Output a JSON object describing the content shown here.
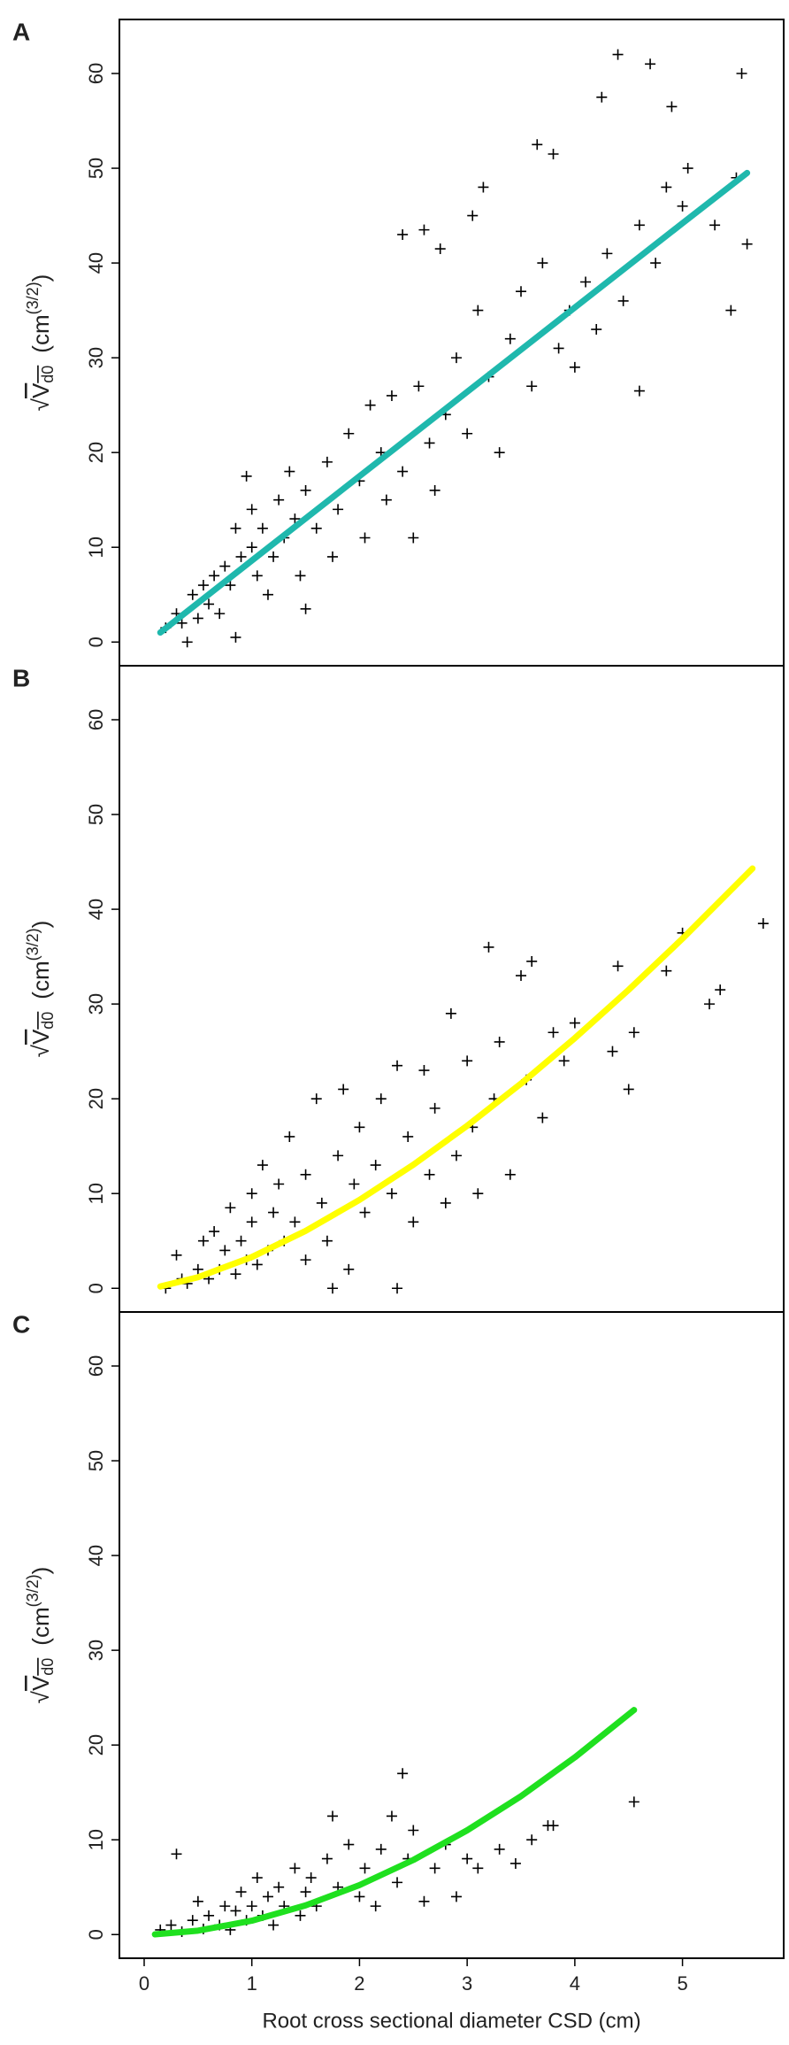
{
  "chart_data": [
    {
      "type": "scatter",
      "panel": "A",
      "ylabel": {
        "root": "√",
        "var": "V",
        "sub": "d0",
        "unit": "(cm",
        "sup": "(3/2)",
        "close": ")"
      },
      "xlim": [
        -0.23,
        5.94
      ],
      "ylim": [
        -2.5,
        65.7
      ],
      "yticks": [
        0,
        10,
        20,
        30,
        40,
        50,
        60
      ],
      "series": [
        {
          "kind": "points",
          "color": "#000000",
          "x": [
            0.2,
            0.3,
            0.35,
            0.4,
            0.45,
            0.5,
            0.55,
            0.6,
            0.65,
            0.7,
            0.75,
            0.8,
            0.85,
            0.85,
            0.9,
            0.95,
            1.0,
            1.0,
            1.05,
            1.1,
            1.15,
            1.2,
            1.25,
            1.3,
            1.35,
            1.4,
            1.45,
            1.5,
            1.5,
            1.6,
            1.7,
            1.75,
            1.8,
            1.9,
            2.0,
            2.05,
            2.1,
            2.2,
            2.25,
            2.3,
            2.4,
            2.4,
            2.5,
            2.55,
            2.6,
            2.65,
            2.7,
            2.75,
            2.8,
            2.9,
            3.0,
            3.05,
            3.1,
            3.15,
            3.2,
            3.3,
            3.4,
            3.5,
            3.6,
            3.65,
            3.7,
            3.8,
            3.85,
            3.95,
            4.0,
            4.1,
            4.2,
            4.25,
            4.3,
            4.4,
            4.45,
            4.6,
            4.6,
            4.7,
            4.75,
            4.85,
            4.9,
            5.0,
            5.05,
            5.3,
            5.45,
            5.5,
            5.55,
            5.6
          ],
          "values": [
            1.5,
            3,
            2,
            0,
            5,
            2.5,
            6,
            4,
            7,
            3,
            8,
            6,
            0.5,
            12,
            9,
            17.5,
            10,
            14,
            7,
            12,
            5,
            9,
            15,
            11,
            18,
            13,
            7,
            3.5,
            16,
            12,
            19,
            9,
            14,
            22,
            17,
            11,
            25,
            20,
            15,
            26,
            18,
            43,
            11,
            27,
            43.5,
            21,
            16,
            41.5,
            24,
            30,
            22,
            45,
            35,
            48,
            28,
            20,
            32,
            37,
            27,
            52.5,
            40,
            51.5,
            31,
            35,
            29,
            38,
            33,
            57.5,
            41,
            62,
            36,
            26.5,
            44,
            61,
            40,
            48,
            56.5,
            46,
            50,
            44,
            35,
            49,
            60,
            42
          ]
        },
        {
          "kind": "line",
          "color": "#1fb8ad",
          "x": [
            0.15,
            1,
            2,
            3,
            4,
            5,
            5.6
          ],
          "values": [
            1,
            8.6,
            17.5,
            26.4,
            35.3,
            44.2,
            49.5
          ]
        }
      ]
    },
    {
      "type": "scatter",
      "panel": "B",
      "ylabel": {
        "root": "√",
        "var": "V",
        "sub": "d0",
        "unit": "(cm",
        "sup": "(3/2)",
        "close": ")"
      },
      "xlim": [
        -0.23,
        5.94
      ],
      "ylim": [
        -2.5,
        65.7
      ],
      "yticks": [
        0,
        10,
        20,
        30,
        40,
        50,
        60
      ],
      "series": [
        {
          "kind": "points",
          "color": "#000000",
          "x": [
            0.2,
            0.3,
            0.35,
            0.4,
            0.5,
            0.55,
            0.6,
            0.65,
            0.7,
            0.75,
            0.8,
            0.85,
            0.9,
            0.95,
            1.0,
            1.0,
            1.05,
            1.1,
            1.15,
            1.2,
            1.25,
            1.3,
            1.35,
            1.4,
            1.5,
            1.5,
            1.6,
            1.65,
            1.7,
            1.75,
            1.8,
            1.85,
            1.9,
            1.95,
            2.0,
            2.05,
            2.15,
            2.2,
            2.3,
            2.35,
            2.35,
            2.45,
            2.5,
            2.6,
            2.65,
            2.7,
            2.8,
            2.85,
            2.9,
            3.0,
            3.05,
            3.1,
            3.2,
            3.25,
            3.3,
            3.4,
            3.5,
            3.55,
            3.6,
            3.7,
            3.8,
            3.9,
            4.0,
            4.35,
            4.4,
            4.5,
            4.55,
            4.85,
            5.0,
            5.25,
            5.35,
            5.75
          ],
          "values": [
            0,
            3.5,
            1,
            0.5,
            2,
            5,
            1,
            6,
            2,
            4,
            8.5,
            1.5,
            5,
            3,
            10,
            7,
            2.5,
            13,
            4,
            8,
            11,
            5,
            16,
            7,
            3,
            12,
            20,
            9,
            5,
            0,
            14,
            21,
            2,
            11,
            17,
            8,
            13,
            20,
            10,
            23.5,
            0,
            16,
            7,
            23,
            12,
            19,
            9,
            29,
            14,
            24,
            17,
            10,
            36,
            20,
            26,
            12,
            33,
            22,
            34.5,
            18,
            27,
            24,
            28,
            25,
            34,
            21,
            27,
            33.5,
            37.5,
            30,
            31.5,
            38.5
          ]
        },
        {
          "kind": "line",
          "color": "#ffff00",
          "x": [
            0.15,
            0.5,
            1,
            1.5,
            2,
            2.5,
            3,
            3.5,
            4,
            4.5,
            5,
            5.65
          ],
          "values": [
            0.19,
            1.17,
            3.3,
            6.06,
            9.33,
            13.04,
            17.15,
            21.6,
            26.4,
            31.5,
            36.9,
            44.3
          ]
        }
      ]
    },
    {
      "type": "scatter",
      "panel": "C",
      "ylabel": {
        "root": "√",
        "var": "V",
        "sub": "d0",
        "unit": "(cm",
        "sup": "(3/2)",
        "close": ")"
      },
      "xlabel": "Root cross sectional diameter CSD (cm)",
      "xlim": [
        -0.23,
        5.94
      ],
      "ylim": [
        -2.5,
        65.7
      ],
      "xticks": [
        0,
        1,
        2,
        3,
        4,
        5
      ],
      "yticks": [
        0,
        10,
        20,
        30,
        40,
        50,
        60
      ],
      "series": [
        {
          "kind": "points",
          "color": "#000000",
          "x": [
            0.15,
            0.25,
            0.3,
            0.35,
            0.45,
            0.5,
            0.55,
            0.6,
            0.7,
            0.75,
            0.8,
            0.85,
            0.9,
            0.95,
            1.0,
            1.05,
            1.1,
            1.15,
            1.2,
            1.25,
            1.3,
            1.4,
            1.45,
            1.5,
            1.55,
            1.6,
            1.7,
            1.75,
            1.8,
            1.9,
            2.0,
            2.05,
            2.15,
            2.2,
            2.3,
            2.35,
            2.4,
            2.45,
            2.5,
            2.6,
            2.7,
            2.8,
            2.9,
            3.0,
            3.1,
            3.3,
            3.45,
            3.6,
            3.75,
            3.8,
            4.55
          ],
          "values": [
            0.5,
            1,
            8.5,
            0.3,
            1.5,
            3.5,
            0.6,
            2,
            1,
            3,
            0.5,
            2.5,
            4.5,
            1.5,
            3,
            6,
            2,
            4,
            1,
            5,
            3,
            7,
            2,
            4.5,
            6,
            3,
            8,
            12.5,
            5,
            9.5,
            4,
            7,
            3,
            9,
            12.5,
            5.5,
            17,
            8,
            11,
            3.5,
            7,
            9.5,
            4,
            8,
            7,
            9,
            7.5,
            10,
            11.5,
            11.5,
            14
          ]
        },
        {
          "kind": "line",
          "color": "#1fe01f",
          "x": [
            0.1,
            0.5,
            1,
            1.5,
            2,
            2.5,
            3,
            3.5,
            4,
            4.55
          ],
          "values": [
            0.021,
            0.41,
            1.46,
            3.08,
            5.22,
            7.87,
            11.0,
            14.6,
            18.7,
            23.7
          ]
        }
      ]
    }
  ]
}
